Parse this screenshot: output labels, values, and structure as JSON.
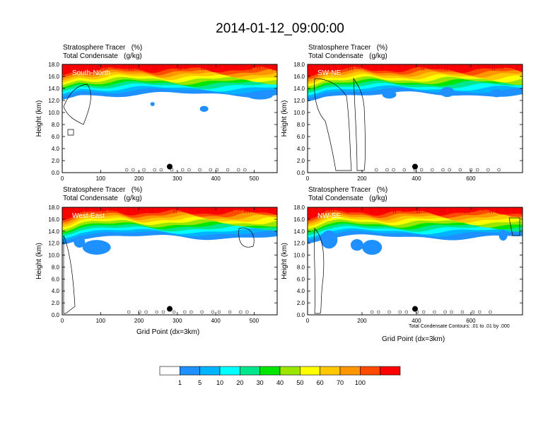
{
  "title": "2014-01-12_09:00:00",
  "field_titles": [
    "Stratosphere Tracer   (%)",
    "Total Condensate   (g/kg)"
  ],
  "y_axis_label": "Height (km)",
  "x_axis_label": "Grid Point (dx=3km)",
  "contour_note": "Total Condensate Contours: .01 to .01 by .000",
  "colorbar": {
    "labels": [
      "1",
      "5",
      "10",
      "20",
      "30",
      "40",
      "50",
      "60",
      "70",
      "100"
    ],
    "colors": [
      "#ffffff",
      "#1e90ff",
      "#00b4ff",
      "#00ffff",
      "#00e68c",
      "#00e600",
      "#9be600",
      "#ffff00",
      "#ffc800",
      "#ff9600",
      "#ff4b00",
      "#ff0000"
    ]
  },
  "chart_data": [
    {
      "type": "heatmap",
      "panel": "South-North",
      "xlim": [
        0,
        560
      ],
      "ylim": [
        0,
        18
      ],
      "x_ticks": [
        0,
        100,
        200,
        300,
        400,
        500
      ],
      "y_ticks": [
        "0.0",
        "2.0",
        "4.0",
        "6.0",
        "8.0",
        "10.0",
        "12.0",
        "14.0",
        "16.0",
        "18.0"
      ],
      "marker_x": 280,
      "marker_y": 1.0
    },
    {
      "type": "heatmap",
      "panel": "SW-NE",
      "xlim": [
        0,
        790
      ],
      "ylim": [
        0,
        18
      ],
      "x_ticks": [
        0,
        200,
        400,
        600
      ],
      "y_ticks": [
        "0.0",
        "2.0",
        "4.0",
        "6.0",
        "8.0",
        "10.0",
        "12.0",
        "14.0",
        "16.0",
        "18.0"
      ],
      "marker_x": 395,
      "marker_y": 1.0
    },
    {
      "type": "heatmap",
      "panel": "West-East",
      "xlim": [
        0,
        560
      ],
      "ylim": [
        0,
        18
      ],
      "x_ticks": [
        0,
        100,
        200,
        300,
        400,
        500
      ],
      "y_ticks": [
        "0.0",
        "2.0",
        "4.0",
        "6.0",
        "8.0",
        "10.0",
        "12.0",
        "14.0",
        "16.0",
        "18.0"
      ],
      "marker_x": 280,
      "marker_y": 1.0
    },
    {
      "type": "heatmap",
      "panel": "NW-SE",
      "xlim": [
        0,
        790
      ],
      "ylim": [
        0,
        18
      ],
      "x_ticks": [
        0,
        200,
        400,
        600
      ],
      "y_ticks": [
        "0.0",
        "2.0",
        "4.0",
        "6.0",
        "8.0",
        "10.0",
        "12.0",
        "14.0",
        "16.0",
        "18.0"
      ],
      "marker_x": 395,
      "marker_y": 1.0
    }
  ]
}
